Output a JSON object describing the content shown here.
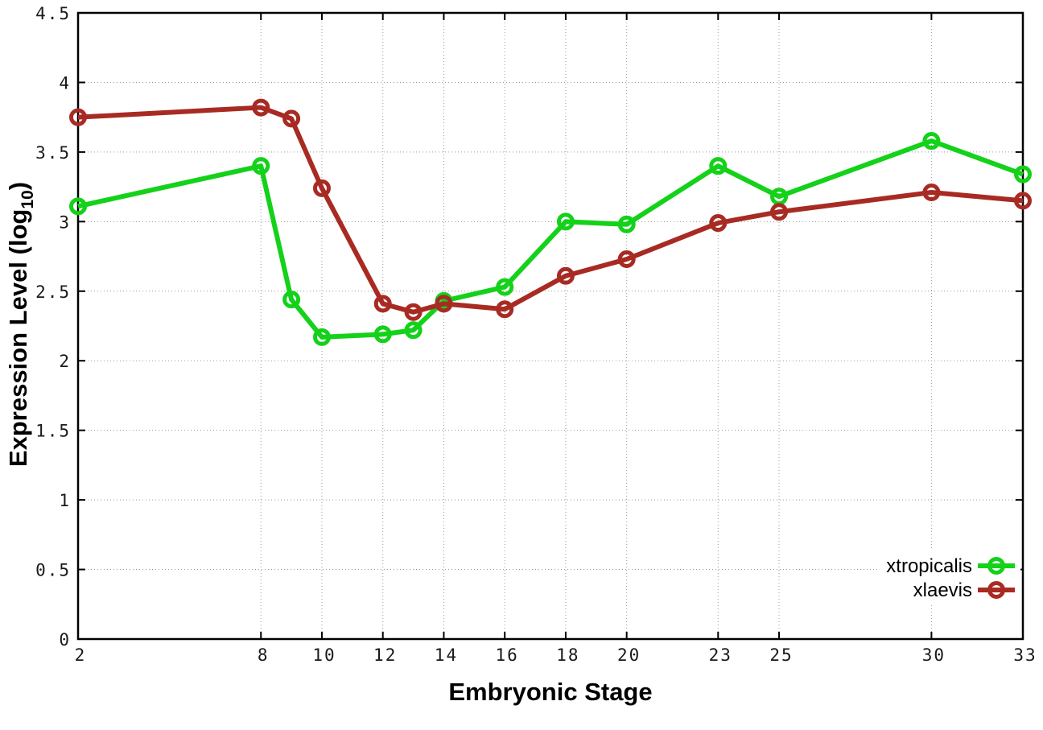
{
  "chart_data": {
    "type": "line",
    "title": "",
    "xlabel": "Embryonic Stage",
    "ylabel": "Expression Level (log10)",
    "ylabel_parts": {
      "base": "Expression Level (log",
      "sub": "10",
      "close": ")"
    },
    "x": [
      2,
      8,
      9,
      10,
      12,
      13,
      14,
      16,
      18,
      20,
      23,
      25,
      30,
      33
    ],
    "series": [
      {
        "name": "xtropicalis",
        "color": "#14d11a",
        "values": [
          3.11,
          3.4,
          2.44,
          2.17,
          2.19,
          2.22,
          2.43,
          2.53,
          3.0,
          2.98,
          3.4,
          3.18,
          3.58,
          3.34
        ]
      },
      {
        "name": "xlaevis",
        "color": "#a82b23",
        "values": [
          3.75,
          3.82,
          3.74,
          3.24,
          2.41,
          2.35,
          2.41,
          2.37,
          2.61,
          2.73,
          2.99,
          3.07,
          3.21,
          3.15
        ]
      }
    ],
    "xlim": [
      2,
      33
    ],
    "ylim": [
      0,
      4.5
    ],
    "xticks": [
      2,
      8,
      10,
      12,
      14,
      16,
      18,
      20,
      23,
      25,
      30,
      33
    ],
    "xtick_labels": [
      "2",
      "8",
      "10",
      "12",
      "14",
      "16",
      "18",
      "20",
      "23",
      "25",
      "30",
      "33"
    ],
    "yticks": [
      0,
      0.5,
      1,
      1.5,
      2,
      2.5,
      3,
      3.5,
      4,
      4.5
    ],
    "ytick_labels": [
      "0",
      "0.5",
      "1",
      "1.5",
      "2",
      "2.5",
      "3",
      "3.5",
      "4",
      "4.5"
    ],
    "grid": true,
    "grid_color": "#9a9a9a",
    "legend_position": "bottom-right",
    "marker": "open-circle",
    "line_width": 6
  },
  "layout_text": {
    "legend": [
      "xtropicalis",
      "xlaevis"
    ]
  }
}
